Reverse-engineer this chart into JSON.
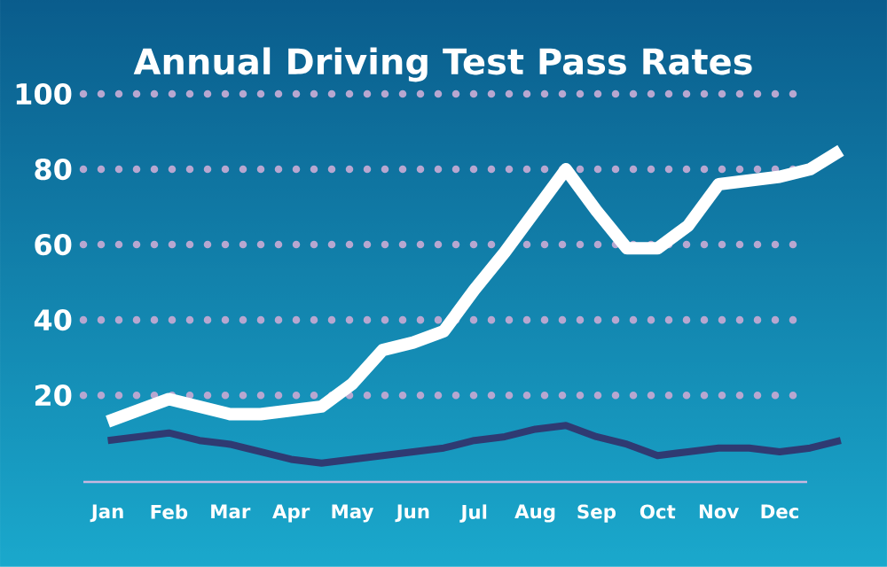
{
  "chart_data": {
    "type": "line",
    "title": "Annual Driving Test Pass Rates",
    "categories": [
      "Jan",
      null,
      "Feb",
      null,
      "Mar",
      null,
      "Apr",
      null,
      "May",
      null,
      "Jun",
      null,
      "Jul",
      null,
      "Aug",
      null,
      "Sep",
      null,
      "Oct",
      null,
      "Nov",
      null,
      "Dec",
      null,
      null
    ],
    "ylim": [
      -3,
      100
    ],
    "yticks": [
      20,
      40,
      60,
      80,
      100
    ],
    "grid": "y",
    "marker": "none",
    "line_style": "solid",
    "series": [
      {
        "color": "#ffffff",
        "values": [
          13,
          16,
          19,
          17,
          15,
          15,
          16,
          17,
          23,
          32,
          34,
          37,
          48,
          58,
          69,
          80,
          69,
          59,
          59,
          65,
          76,
          77,
          78,
          80,
          85
        ]
      },
      {
        "color": "#2f3a72",
        "values": [
          8,
          9,
          10,
          8,
          7,
          5,
          3,
          2,
          3,
          4,
          5,
          6,
          8,
          9,
          11,
          12,
          9,
          7,
          4,
          5,
          6,
          6,
          5,
          6,
          8
        ]
      }
    ]
  }
}
